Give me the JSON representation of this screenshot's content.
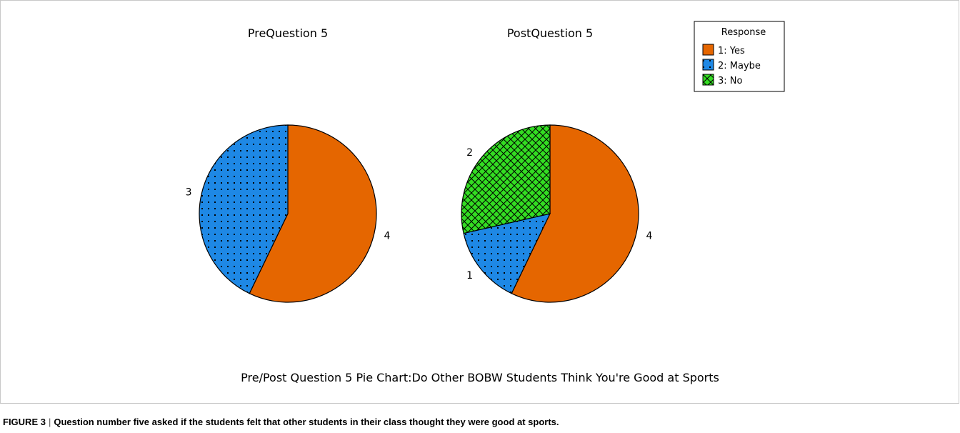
{
  "chart_data": [
    {
      "type": "pie",
      "title": "PreQuestion 5",
      "categories": [
        "1: Yes",
        "2: Maybe",
        "3: No"
      ],
      "values": [
        4,
        3,
        0
      ],
      "labels": [
        "4",
        "3",
        ""
      ]
    },
    {
      "type": "pie",
      "title": "PostQuestion 5",
      "categories": [
        "1: Yes",
        "2: Maybe",
        "3: No"
      ],
      "values": [
        4,
        1,
        2
      ],
      "labels": [
        "4",
        "1",
        "2"
      ]
    }
  ],
  "legend": {
    "title": "Response",
    "placement": "top-right",
    "entries": [
      {
        "label": "1: Yes",
        "color": "#e56600",
        "pattern": "solid"
      },
      {
        "label": "2: Maybe",
        "color": "#1e88e5",
        "pattern": "dots"
      },
      {
        "label": "3: No",
        "color": "#33dd22",
        "pattern": "crosshatch"
      }
    ]
  },
  "footer_title": "Pre/Post Question 5 Pie Chart:Do Other BOBW Students Think You're Good at Sports",
  "caption": {
    "figure_label": "FIGURE 3",
    "separator": "|",
    "text": "Question number five asked if the students felt that other students in their class thought they were good at sports",
    "end": "."
  }
}
